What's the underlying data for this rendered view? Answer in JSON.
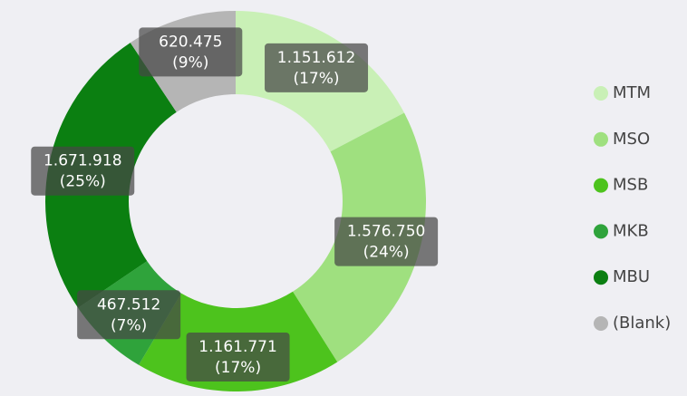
{
  "chart_data": {
    "type": "donut",
    "categories": [
      "MTM",
      "MSO",
      "MSB",
      "MKB",
      "MBU",
      "(Blank)"
    ],
    "values": [
      1151612,
      1576750,
      1161771,
      467512,
      1671918,
      620475
    ],
    "value_labels": [
      "1.151.612",
      "1.576.750",
      "1.161.771",
      "467.512",
      "1.671.918",
      "620.475"
    ],
    "percent_labels": [
      "(17%)",
      "(24%)",
      "(17%)",
      "(7%)",
      "(25%)",
      "(9%)"
    ],
    "colors": [
      "#c9f0b6",
      "#9fe07f",
      "#4dc31d",
      "#2fa33b",
      "#0b7f11",
      "#b5b5b5"
    ],
    "legend": "right"
  }
}
